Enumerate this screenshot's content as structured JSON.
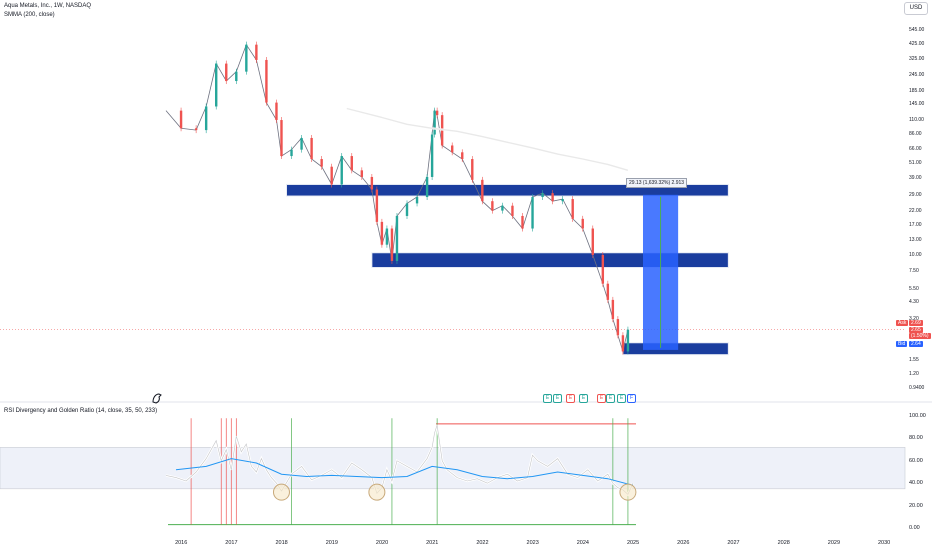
{
  "header": {
    "title": "Aqua Metals, Inc., 1W, NASDAQ",
    "indicator": "SMMA (200, close)",
    "rsi_title": "RSI Divergency and Golden Ratio (14, close, 35, 50, 233)"
  },
  "toolbar": {
    "currency": "USD"
  },
  "price_scale": [
    "545.00",
    "425.00",
    "325.00",
    "245.00",
    "185.00",
    "145.00",
    "110.00",
    "86.00",
    "66.00",
    "51.00",
    "39.00",
    "29.00",
    "22.00",
    "17.00",
    "13.00",
    "10.00",
    "7.50",
    "5.50",
    "4.30",
    "3.20",
    "2.45",
    "1.55",
    "1.20",
    "0.9400"
  ],
  "rsi_scale": [
    "100.00",
    "80.00",
    "60.00",
    "40.00",
    "20.00",
    "0.00"
  ],
  "x_axis": [
    "2016",
    "2017",
    "2018",
    "2019",
    "2020",
    "2021",
    "2022",
    "2023",
    "2024",
    "2025",
    "2026",
    "2027",
    "2028",
    "2029",
    "2030"
  ],
  "price_labels": {
    "ask_tag": "Ask",
    "ask_value": "2.69",
    "last_value": "2.65",
    "change": "(1.50%)",
    "bid_tag": "Bid",
    "bid_value": "2.64"
  },
  "measure_label": "29.13 (1,639.32%) 2.913",
  "markers": [
    "E",
    "E",
    "E",
    "E",
    "E",
    "E",
    "E",
    "F"
  ],
  "colors": {
    "up": "#26a69a",
    "down": "#ef5350",
    "smma": "#ffffff",
    "zone_fill": "#1a3d9e",
    "zone_border": "#e8ecf5",
    "rsi_line": "#ffffff",
    "rsi_ma": "#2196f3",
    "ask": "#ef5350",
    "bid": "#2962ff"
  },
  "chart_data": [
    {
      "type": "line",
      "title": "Aqua Metals, Inc., 1W, NASDAQ",
      "scale": "log",
      "x": [
        2015.7,
        2016.0,
        2016.3,
        2016.5,
        2016.7,
        2016.9,
        2017.1,
        2017.3,
        2017.5,
        2017.7,
        2017.9,
        2018.0,
        2018.2,
        2018.4,
        2018.6,
        2018.8,
        2019.0,
        2019.2,
        2019.4,
        2019.6,
        2019.8,
        2019.9,
        2020.0,
        2020.1,
        2020.2,
        2020.3,
        2020.5,
        2020.7,
        2020.9,
        2021.0,
        2021.05,
        2021.1,
        2021.2,
        2021.4,
        2021.6,
        2021.8,
        2022.0,
        2022.2,
        2022.4,
        2022.6,
        2022.8,
        2023.0,
        2023.2,
        2023.4,
        2023.6,
        2023.8,
        2024.0,
        2024.2,
        2024.4,
        2024.5,
        2024.6,
        2024.7,
        2024.8,
        2024.9
      ],
      "y": [
        130,
        95,
        92,
        140,
        300,
        220,
        260,
        420,
        320,
        150,
        110,
        58,
        65,
        80,
        55,
        48,
        35,
        58,
        45,
        40,
        32,
        18,
        12,
        16,
        9,
        20,
        25,
        28,
        40,
        85,
        130,
        120,
        70,
        62,
        55,
        38,
        26,
        22,
        24,
        20,
        16,
        28,
        30,
        26,
        27,
        19,
        16,
        10,
        6,
        4.5,
        3.2,
        2.4,
        1.8,
        2.65
      ],
      "series": [
        {
          "name": "SMMA (200, close)",
          "x": [
            2019.3,
            2020.0,
            2020.5,
            2021.0,
            2021.5,
            2022.0,
            2022.5,
            2023.0,
            2023.5,
            2024.0,
            2024.5,
            2024.9
          ],
          "y": [
            135,
            115,
            102,
            95,
            90,
            82,
            74,
            67,
            60,
            55,
            50,
            45
          ]
        }
      ],
      "zones": [
        {
          "x": [
            2018.1,
            2026.9
          ],
          "y": [
            28.5,
            35
          ]
        },
        {
          "x": [
            2019.8,
            2026.9
          ],
          "y": [
            8.0,
            10.4
          ]
        },
        {
          "x": [
            2024.8,
            2026.9
          ],
          "y": [
            1.7,
            2.1
          ]
        }
      ],
      "measure": {
        "x": [
          2025.2,
          2025.9
        ],
        "y": [
          1.85,
          29.13
        ],
        "text": "29.13 (1,639.32%) 2.913"
      },
      "last_price": 2.65
    },
    {
      "type": "line",
      "title": "RSI Divergency and Golden Ratio (14, close, 35, 50, 233)",
      "ylim": [
        0,
        100
      ],
      "band": [
        35,
        72
      ],
      "x": [
        2015.7,
        2015.9,
        2016.1,
        2016.3,
        2016.5,
        2016.7,
        2016.8,
        2016.9,
        2017.0,
        2017.1,
        2017.2,
        2017.3,
        2017.4,
        2017.5,
        2017.6,
        2017.7,
        2017.8,
        2017.9,
        2018.0,
        2018.2,
        2018.4,
        2018.6,
        2018.8,
        2019.0,
        2019.2,
        2019.4,
        2019.6,
        2019.8,
        2019.9,
        2020.0,
        2020.1,
        2020.2,
        2020.3,
        2020.5,
        2020.7,
        2020.9,
        2021.0,
        2021.05,
        2021.1,
        2021.2,
        2021.3,
        2021.5,
        2021.7,
        2021.9,
        2022.1,
        2022.3,
        2022.5,
        2022.7,
        2022.9,
        2023.0,
        2023.1,
        2023.3,
        2023.5,
        2023.7,
        2023.9,
        2024.1,
        2024.3,
        2024.5,
        2024.6,
        2024.7,
        2024.8,
        2024.9,
        2025.0
      ],
      "y": [
        47,
        45,
        42,
        50,
        62,
        78,
        60,
        70,
        52,
        82,
        68,
        75,
        55,
        50,
        62,
        52,
        45,
        40,
        33,
        48,
        55,
        43,
        47,
        52,
        45,
        58,
        52,
        45,
        31,
        36,
        52,
        42,
        60,
        55,
        50,
        62,
        72,
        85,
        92,
        60,
        52,
        45,
        42,
        44,
        40,
        45,
        48,
        42,
        45,
        65,
        60,
        55,
        62,
        48,
        45,
        52,
        42,
        48,
        40,
        36,
        34,
        30,
        40
      ],
      "series": [
        {
          "name": "RSI MA",
          "x": [
            2015.9,
            2016.5,
            2017.0,
            2017.5,
            2018.0,
            2018.5,
            2019.0,
            2019.5,
            2020.0,
            2020.5,
            2021.0,
            2021.5,
            2022.0,
            2022.5,
            2023.0,
            2023.5,
            2024.0,
            2024.5,
            2025.0
          ],
          "y": [
            52,
            55,
            62,
            58,
            48,
            46,
            47,
            46,
            45,
            46,
            55,
            52,
            46,
            44,
            46,
            50,
            47,
            44,
            38
          ]
        }
      ]
    }
  ]
}
